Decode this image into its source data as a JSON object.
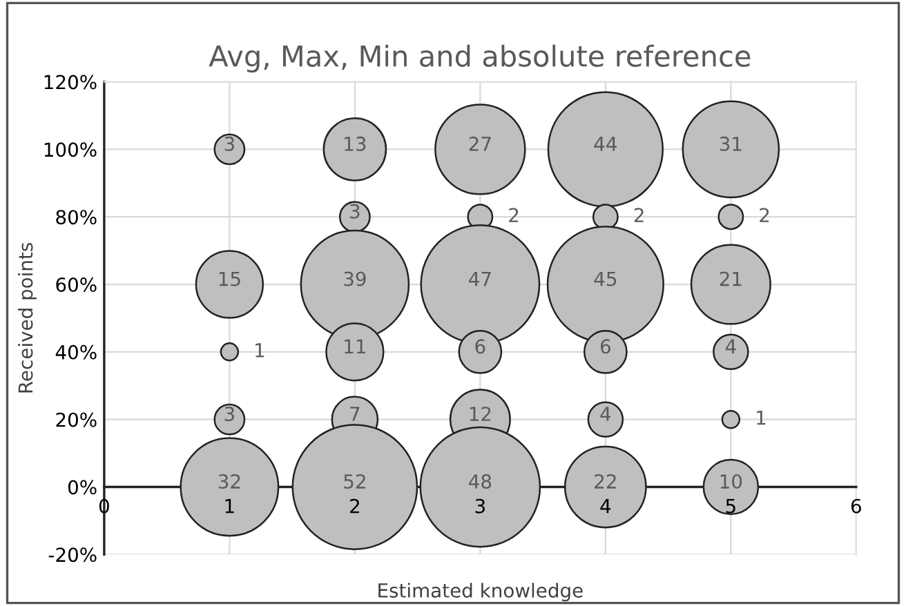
{
  "chart_data": {
    "type": "bubble",
    "title": "Avg, Max, Min and absolute reference",
    "xlabel": "Estimated knowledge",
    "ylabel": "Received points",
    "xlim": [
      0,
      6
    ],
    "xticks": [
      0,
      1,
      2,
      3,
      4,
      5,
      6
    ],
    "ylim": [
      -20,
      120
    ],
    "yticks": [
      {
        "value": -20,
        "label": "-20%"
      },
      {
        "value": 0,
        "label": "0%"
      },
      {
        "value": 20,
        "label": "20%"
      },
      {
        "value": 40,
        "label": "40%"
      },
      {
        "value": 60,
        "label": "60%"
      },
      {
        "value": 80,
        "label": "80%"
      },
      {
        "value": 100,
        "label": "100%"
      },
      {
        "value": 120,
        "label": "120%"
      }
    ],
    "grid": true,
    "legend": false,
    "series": [
      {
        "color": "#bfbfbf",
        "x": [
          1,
          1,
          1,
          1,
          1,
          2,
          2,
          2,
          2,
          2,
          2,
          3,
          3,
          3,
          3,
          3,
          3,
          4,
          4,
          4,
          4,
          4,
          4,
          5,
          5,
          5,
          5,
          5,
          5
        ],
        "values": [
          100,
          60,
          40,
          20,
          0,
          100,
          80,
          60,
          40,
          20,
          0,
          100,
          80,
          60,
          40,
          20,
          0,
          100,
          80,
          60,
          40,
          20,
          0,
          100,
          80,
          60,
          40,
          20,
          0
        ],
        "sizes": [
          3,
          15,
          1,
          3,
          32,
          13,
          3,
          39,
          11,
          7,
          52,
          27,
          2,
          47,
          6,
          12,
          48,
          44,
          2,
          45,
          6,
          4,
          22,
          31,
          2,
          21,
          4,
          1,
          10
        ],
        "value_labels": [
          "3",
          "15",
          "1",
          "3",
          "32",
          "13",
          "3",
          "39",
          "11",
          "7",
          "52",
          "27",
          "2",
          "47",
          "6",
          "12",
          "48",
          "44",
          "2",
          "45",
          "6",
          "4",
          "22",
          "31",
          "2",
          "21",
          "4",
          "1",
          "10"
        ]
      }
    ]
  }
}
